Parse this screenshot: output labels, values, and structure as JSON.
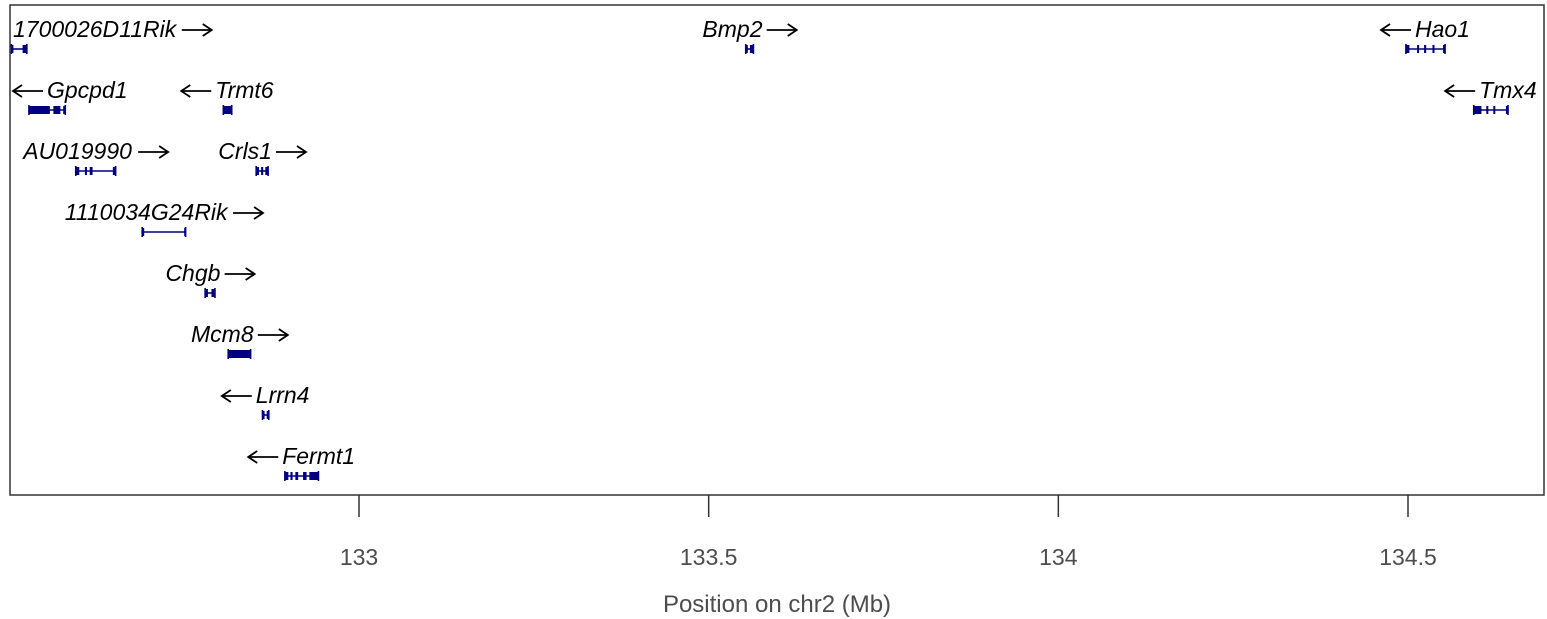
{
  "chart_data": {
    "type": "gene-track",
    "xlabel": "Position on chr2 (Mb)",
    "xlim": [
      132.5,
      134.7
    ],
    "ticks": [
      {
        "value": 133,
        "label": "133"
      },
      {
        "value": 133.5,
        "label": "133.5"
      },
      {
        "value": 134,
        "label": "134"
      },
      {
        "value": 134.5,
        "label": "134.5"
      }
    ],
    "grid": false,
    "gene_color": "#000080",
    "genes": [
      {
        "name": "1700026D11Rik",
        "strand": "+",
        "start": 132.503,
        "end": 132.525,
        "row": 1,
        "exons": [
          [
            132.503,
            132.505
          ],
          [
            132.519,
            132.525
          ]
        ]
      },
      {
        "name": "Bmp2",
        "strand": "+",
        "start": 133.553,
        "end": 133.564,
        "row": 1,
        "exons": [
          [
            133.553,
            133.556
          ],
          [
            133.559,
            133.564
          ]
        ]
      },
      {
        "name": "Hao1",
        "strand": "-",
        "start": 134.497,
        "end": 134.553,
        "row": 1,
        "exons": [
          [
            134.497,
            134.502
          ],
          [
            134.513,
            134.515
          ],
          [
            134.523,
            134.526
          ],
          [
            134.535,
            134.537
          ],
          [
            134.55,
            134.553
          ]
        ]
      },
      {
        "name": "Gpcpd1",
        "strand": "-",
        "start": 132.528,
        "end": 132.58,
        "row": 2,
        "exons": [
          [
            132.528,
            132.558
          ],
          [
            132.563,
            132.573
          ],
          [
            132.577,
            132.58
          ]
        ]
      },
      {
        "name": "Trmt6",
        "strand": "-",
        "start": 132.806,
        "end": 132.818,
        "row": 2,
        "exons": [
          [
            132.806,
            132.818
          ]
        ]
      },
      {
        "name": "Tmx4",
        "strand": "-",
        "start": 134.594,
        "end": 134.643,
        "row": 2,
        "exons": [
          [
            134.594,
            134.605
          ],
          [
            134.612,
            134.614
          ],
          [
            134.622,
            134.624
          ],
          [
            134.64,
            134.643
          ]
        ]
      },
      {
        "name": "AU019990",
        "strand": "+",
        "start": 132.595,
        "end": 132.652,
        "row": 3,
        "exons": [
          [
            132.595,
            132.6
          ],
          [
            132.608,
            132.611
          ],
          [
            132.615,
            132.619
          ],
          [
            132.648,
            132.652
          ]
        ]
      },
      {
        "name": "Crls1",
        "strand": "+",
        "start": 132.853,
        "end": 132.87,
        "row": 3,
        "exons": [
          [
            132.853,
            132.857
          ],
          [
            132.86,
            132.863
          ],
          [
            132.866,
            132.87
          ]
        ]
      },
      {
        "name": "1110034G24Rik",
        "strand": "+",
        "start": 132.69,
        "end": 132.752,
        "row": 4,
        "exons": [
          [
            132.69,
            132.692
          ],
          [
            132.75,
            132.752
          ]
        ]
      },
      {
        "name": "Chgb",
        "strand": "+",
        "start": 132.78,
        "end": 132.794,
        "row": 5,
        "exons": [
          [
            132.78,
            132.784
          ],
          [
            132.789,
            132.794
          ]
        ]
      },
      {
        "name": "Mcm8",
        "strand": "+",
        "start": 132.813,
        "end": 132.845,
        "row": 6,
        "exons": [
          [
            132.813,
            132.845
          ]
        ]
      },
      {
        "name": "Lrrn4",
        "strand": "-",
        "start": 132.862,
        "end": 132.871,
        "row": 7,
        "exons": [
          [
            132.862,
            132.865
          ],
          [
            132.868,
            132.871
          ]
        ]
      },
      {
        "name": "Fermt1",
        "strand": "-",
        "start": 132.894,
        "end": 132.942,
        "row": 8,
        "exons": [
          [
            132.894,
            132.899
          ],
          [
            132.902,
            132.905
          ],
          [
            132.909,
            132.913
          ],
          [
            132.92,
            132.925
          ],
          [
            132.929,
            132.942
          ]
        ]
      }
    ]
  }
}
